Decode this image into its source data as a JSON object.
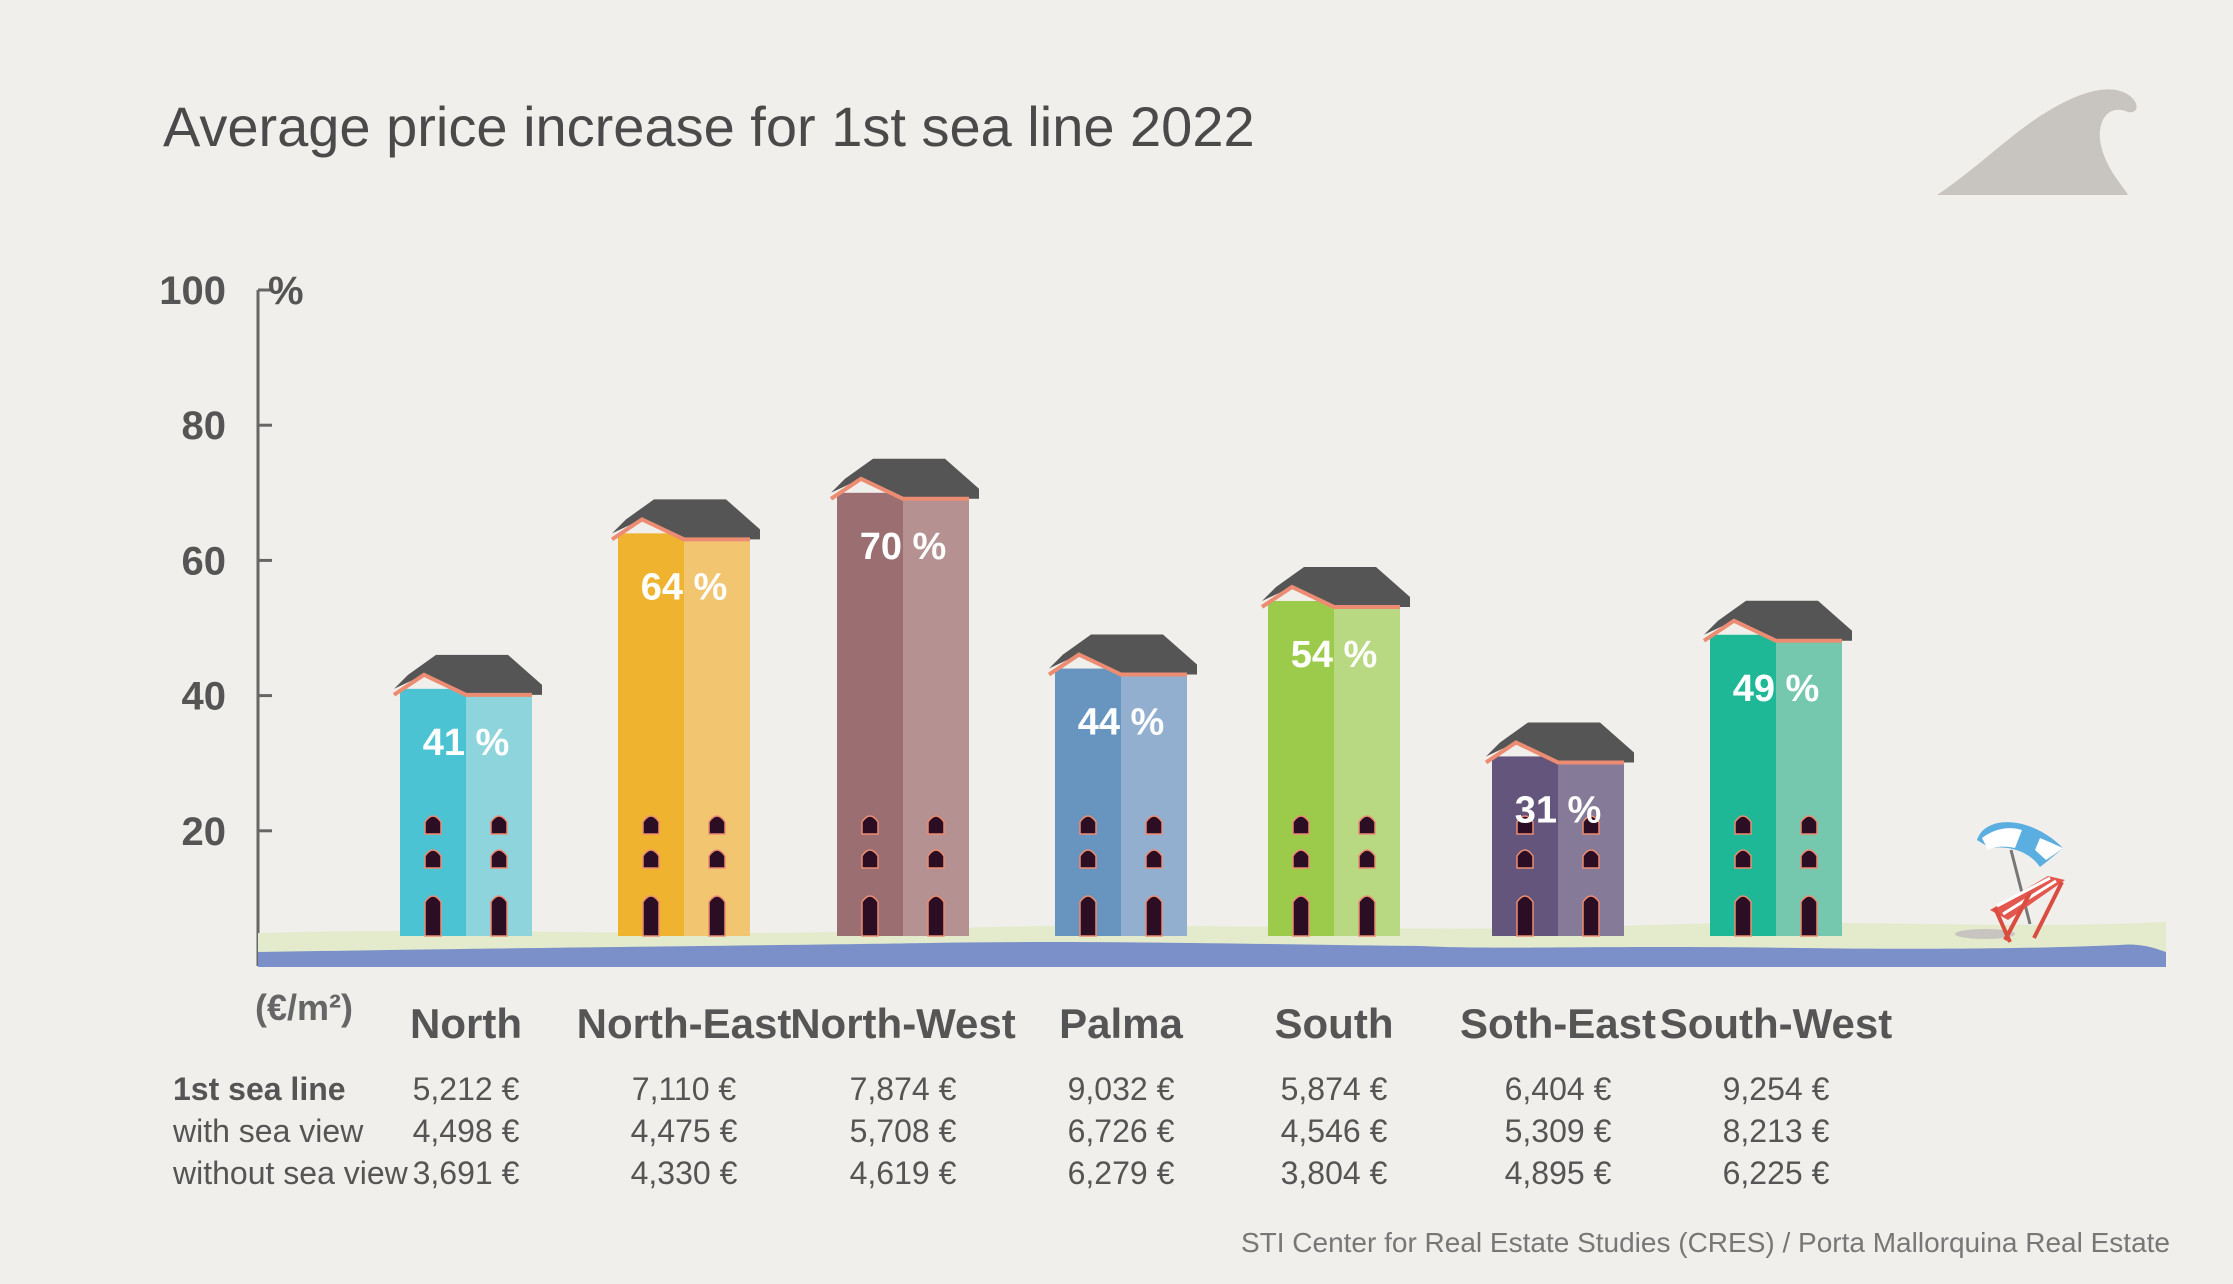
{
  "colors": {
    "background": "#f1efeb",
    "roof": "#555555",
    "roof_trim": "#ec8c72",
    "window": "#2b0d24",
    "sand": "#e3ebcc",
    "sea": "#7b90c9",
    "wave": "#c8c4bf"
  },
  "icons": [
    "wave-icon",
    "beach-umbrella-icon",
    "deck-chair-icon"
  ],
  "chart_data": {
    "type": "bar",
    "title": "Average price increase for 1st sea line 2022",
    "ylabel": "%",
    "ylim": [
      0,
      100
    ],
    "yticks": [
      "20",
      "40",
      "60",
      "80",
      "100"
    ],
    "unit_label": "(€/m²)",
    "categories": [
      "North",
      "North-East",
      "North-West",
      "Palma",
      "South",
      "Soth-East",
      "South-West"
    ],
    "values": [
      41,
      64,
      70,
      44,
      54,
      31,
      49
    ],
    "value_labels": [
      "41 %",
      "64 %",
      "70 %",
      "44 %",
      "54 %",
      "31 %",
      "49 %"
    ],
    "bar_colors": [
      [
        "#4cc3d3",
        "#8ed4dc"
      ],
      [
        "#f0b330",
        "#f2c671"
      ],
      [
        "#9b6f71",
        "#b59191"
      ],
      [
        "#6895c0",
        "#93afd0"
      ],
      [
        "#9ccb4c",
        "#b8d881"
      ],
      [
        "#63557b",
        "#857a97"
      ],
      [
        "#1fb896",
        "#75c8ad"
      ]
    ],
    "table": {
      "rows": [
        {
          "label": "1st sea line",
          "values": [
            "5,212 €",
            "7,110 €",
            "7,874 €",
            "9,032 €",
            "5,874 €",
            "6,404 €",
            "9,254 €"
          ]
        },
        {
          "label": "with sea view",
          "values": [
            "4,498 €",
            "4,475 €",
            "5,708 €",
            "6,726 €",
            "4,546 €",
            "5,309 €",
            "8,213 €"
          ]
        },
        {
          "label": "without sea view",
          "values": [
            "3,691 €",
            "4,330  €",
            "4,619 €",
            "6,279 €",
            "3,804 €",
            "4,895 €",
            "6,225 €"
          ]
        }
      ]
    },
    "source": "STI Center for Real Estate Studies (CRES) / Porta Mallorquina Real Estate",
    "grid": false,
    "legend": "none"
  }
}
